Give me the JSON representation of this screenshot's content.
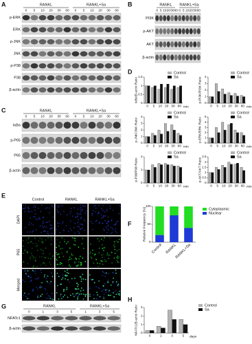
{
  "panel_labels": {
    "A": "A",
    "B": "B",
    "C": "C",
    "D": "D",
    "E": "E",
    "F": "F",
    "G": "G",
    "H": "H"
  },
  "blots": [
    {
      "groups": [
        "RANKL",
        "RANKL+Sa"
      ],
      "lanes": [
        0,
        5,
        10,
        20,
        30,
        60,
        0,
        5,
        10,
        20,
        30,
        60
      ],
      "rows": [
        "p-ERK",
        "ERK",
        "p-JNK",
        "JNK",
        "p-P38",
        "P38",
        "β-actin"
      ]
    },
    {
      "groups": [
        "RANKL",
        "RANKL+Sa"
      ],
      "lanes": [
        0,
        5,
        10,
        20,
        30,
        60,
        0,
        5,
        10,
        20,
        30,
        60
      ],
      "rows": [
        "PI3K",
        "p-AKT",
        "AKT",
        "β-actin"
      ]
    },
    {
      "groups": [
        "RANKL",
        "RANKL+Sa"
      ],
      "lanes": [
        0,
        5,
        10,
        20,
        30,
        60,
        0,
        5,
        10,
        20,
        30,
        60
      ],
      "rows": [
        "IκBα",
        "p-P65",
        "P65",
        "β-actin"
      ]
    },
    {
      "groups": [
        "RANKL",
        "RANKL+Sa"
      ],
      "lanes": [
        0,
        1,
        3,
        5,
        1,
        3,
        5
      ],
      "rows": [
        "NFATc1",
        "β-actin"
      ]
    }
  ],
  "microscopy": {
    "columns": [
      "Control",
      "RANKL",
      "RANKL+Sa"
    ],
    "rows": [
      "DAPI",
      "P65",
      "Merged"
    ]
  },
  "chart_data": [
    {
      "type": "bar",
      "ylabel": "IκBα/β-actin Ratio",
      "categories": [
        0,
        5,
        10,
        20,
        30,
        60
      ],
      "unit": "min",
      "series": [
        {
          "name": "Control",
          "color": "#b3b3b3",
          "values": [
            1.0,
            0.9,
            0.8,
            0.9,
            0.8,
            0.9
          ]
        },
        {
          "name": "Sa",
          "color": "#111111",
          "values": [
            1.0,
            1.0,
            1.1,
            1.1,
            1.0,
            1.0
          ]
        }
      ],
      "ylim": [
        0,
        1.5
      ],
      "yticks": [
        0,
        0.5,
        1,
        1.5
      ]
    },
    {
      "type": "bar",
      "ylabel": "p-PI3K/PI3K Ratio",
      "categories": [
        0,
        5,
        10,
        20,
        30,
        60
      ],
      "unit": "min",
      "series": [
        {
          "name": "Control",
          "color": "#b3b3b3",
          "values": [
            1.0,
            3.0,
            2.2,
            1.6,
            1.5,
            1.2
          ]
        },
        {
          "name": "Sa",
          "color": "#111111",
          "values": [
            1.0,
            1.8,
            1.4,
            1.2,
            1.1,
            1.0
          ]
        }
      ],
      "ylim": [
        0,
        4
      ],
      "yticks": [
        0,
        1,
        2,
        3,
        4
      ]
    },
    {
      "type": "bar",
      "ylabel": "p-JNK/JNK Ratio",
      "categories": [
        0,
        5,
        10,
        20,
        30,
        60
      ],
      "unit": "min",
      "series": [
        {
          "name": "Control",
          "color": "#b3b3b3",
          "values": [
            1.0,
            1.5,
            2.0,
            3.0,
            2.8,
            1.5
          ]
        },
        {
          "name": "Sa",
          "color": "#111111",
          "values": [
            1.0,
            1.2,
            1.4,
            1.8,
            2.0,
            1.2
          ]
        }
      ],
      "ylim": [
        0,
        4
      ],
      "yticks": [
        0,
        1,
        2,
        3,
        4
      ]
    },
    {
      "type": "bar",
      "ylabel": "p-ERK/ERK Ratio",
      "categories": [
        0,
        5,
        10,
        20,
        30,
        60
      ],
      "unit": "min",
      "series": [
        {
          "name": "Control",
          "color": "#b3b3b3",
          "values": [
            1.0,
            3.0,
            4.0,
            3.5,
            2.5,
            2.0
          ]
        },
        {
          "name": "Sa",
          "color": "#111111",
          "values": [
            1.0,
            2.0,
            2.5,
            3.8,
            2.0,
            1.5
          ]
        }
      ],
      "ylim": [
        0,
        5
      ],
      "yticks": [
        0,
        1,
        2,
        3,
        4,
        5
      ]
    },
    {
      "type": "bar",
      "ylabel": "p-P38/P38 Ratio",
      "categories": [
        0,
        5,
        10,
        20,
        30,
        60
      ],
      "unit": "min",
      "series": [
        {
          "name": "Control",
          "color": "#b3b3b3",
          "values": [
            1.0,
            1.4,
            1.5,
            1.5,
            1.4,
            1.3
          ]
        },
        {
          "name": "Sa",
          "color": "#111111",
          "values": [
            1.0,
            1.2,
            1.4,
            1.4,
            1.3,
            1.2
          ]
        }
      ],
      "ylim": [
        0,
        2
      ],
      "yticks": [
        0,
        1,
        2
      ]
    },
    {
      "type": "bar",
      "ylabel": "p-AKT/AKT Ratio",
      "categories": [
        0,
        5,
        10,
        20,
        30,
        60
      ],
      "unit": "min",
      "series": [
        {
          "name": "Control",
          "color": "#b3b3b3",
          "values": [
            1.0,
            1.5,
            1.7,
            2.0,
            1.8,
            1.5
          ]
        },
        {
          "name": "Sa",
          "color": "#111111",
          "values": [
            1.0,
            1.3,
            1.5,
            1.8,
            1.9,
            1.2
          ]
        }
      ],
      "ylim": [
        0,
        2.5
      ],
      "yticks": [
        0,
        0.5,
        1,
        1.5,
        2,
        2.5
      ]
    },
    {
      "type": "stacked_bar",
      "ylabel": "Relative Frequency (%)",
      "categories": [
        "Control",
        "RANKL",
        "RANKL+Sa"
      ],
      "series": [
        {
          "name": "Cytoplasmic",
          "color": "#22dd22",
          "values": [
            80,
            25,
            60
          ]
        },
        {
          "name": "Nuclear",
          "color": "#1f3bd6",
          "values": [
            20,
            75,
            40
          ]
        }
      ],
      "ylim": [
        0,
        100
      ],
      "yticks": [
        0,
        50,
        100
      ]
    },
    {
      "type": "bar",
      "ylabel": "NFATc1/β-actin Ratio",
      "categories": [
        0,
        1,
        3,
        5
      ],
      "unit": "days",
      "series": [
        {
          "name": "Control",
          "color": "#b3b3b3",
          "values": [
            0.3,
            0.8,
            2.7,
            1.6
          ]
        },
        {
          "name": "Sa",
          "color": "#111111",
          "values": [
            0.3,
            0.6,
            1.6,
            1.0
          ]
        }
      ],
      "ylim": [
        0,
        3
      ],
      "yticks": [
        0,
        1,
        2,
        3
      ]
    }
  ]
}
